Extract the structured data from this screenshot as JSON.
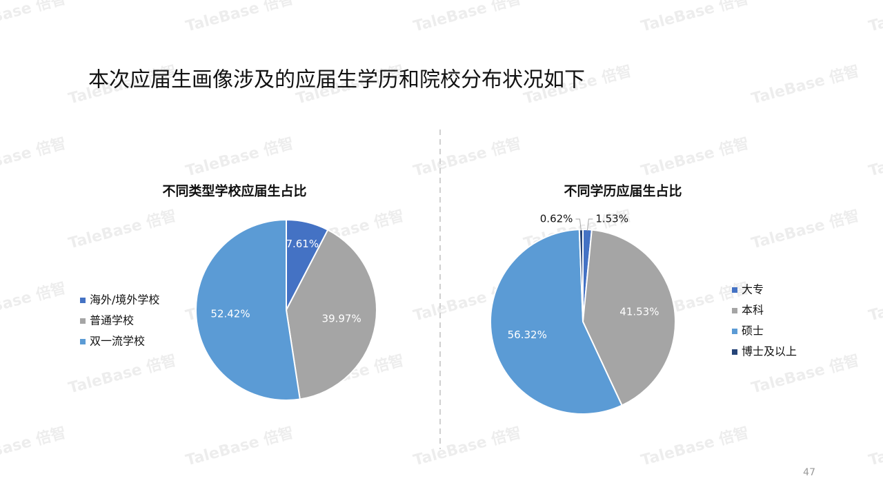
{
  "title": "本次应届生画像涉及的应届生学历和院校分布状况如下",
  "page_number": "47",
  "watermark": "TaleBase 倍智",
  "chart_data": [
    {
      "type": "pie",
      "title": "不同类型学校应届生占比",
      "categories": [
        "海外/境外学校",
        "普通学校",
        "双一流学校"
      ],
      "values": [
        7.61,
        39.97,
        52.42
      ],
      "value_labels": [
        "7.61%",
        "39.97%",
        "52.42%"
      ],
      "colors": [
        "#4472c4",
        "#a5a5a5",
        "#5b9bd5"
      ],
      "legend": "left"
    },
    {
      "type": "pie",
      "title": "不同学历应届生占比",
      "categories": [
        "大专",
        "本科",
        "硕士",
        "博士及以上"
      ],
      "values": [
        1.53,
        41.53,
        56.32,
        0.62
      ],
      "value_labels": [
        "1.53%",
        "41.53%",
        "56.32%",
        "0.62%"
      ],
      "colors": [
        "#4472c4",
        "#a5a5a5",
        "#5b9bd5",
        "#264478"
      ],
      "legend": "right"
    }
  ]
}
